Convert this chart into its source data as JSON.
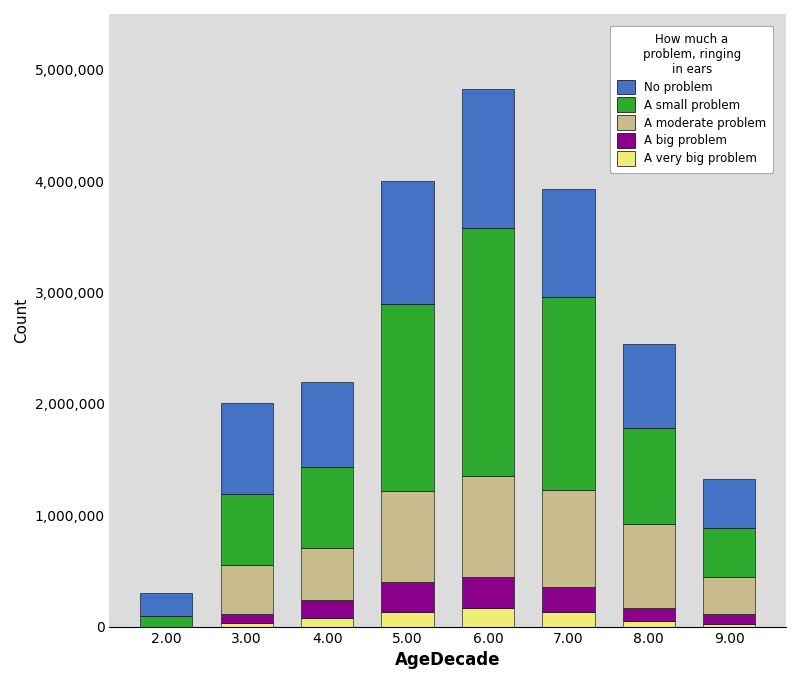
{
  "categories": [
    "2.00",
    "3.00",
    "4.00",
    "5.00",
    "6.00",
    "7.00",
    "8.00",
    "9.00"
  ],
  "legend_title": "How much a\nproblem, ringing\nin ears",
  "legend_labels": [
    "No problem",
    "A small problem",
    "A moderate problem",
    "A big problem",
    "A very big problem"
  ],
  "colors": [
    "#4472C4",
    "#2EAA2E",
    "#C8BC8C",
    "#8B008B",
    "#EEEE77"
  ],
  "segments": {
    "A very big problem": [
      0,
      30000,
      80000,
      130000,
      170000,
      130000,
      50000,
      25000
    ],
    "A big problem": [
      0,
      80000,
      160000,
      270000,
      280000,
      230000,
      120000,
      90000
    ],
    "A moderate problem": [
      0,
      440000,
      470000,
      820000,
      900000,
      870000,
      750000,
      330000
    ],
    "A small problem": [
      100000,
      640000,
      720000,
      1680000,
      2230000,
      1730000,
      860000,
      440000
    ],
    "No problem": [
      200000,
      820000,
      770000,
      1100000,
      1250000,
      970000,
      760000,
      445000
    ]
  },
  "xlabel": "AgeDecade",
  "ylabel": "Count",
  "ylim": [
    0,
    5500000
  ],
  "yticks": [
    0,
    1000000,
    2000000,
    3000000,
    4000000,
    5000000
  ],
  "plot_bg_color": "#DCDCDC",
  "figure_bg_color": "#FFFFFF"
}
